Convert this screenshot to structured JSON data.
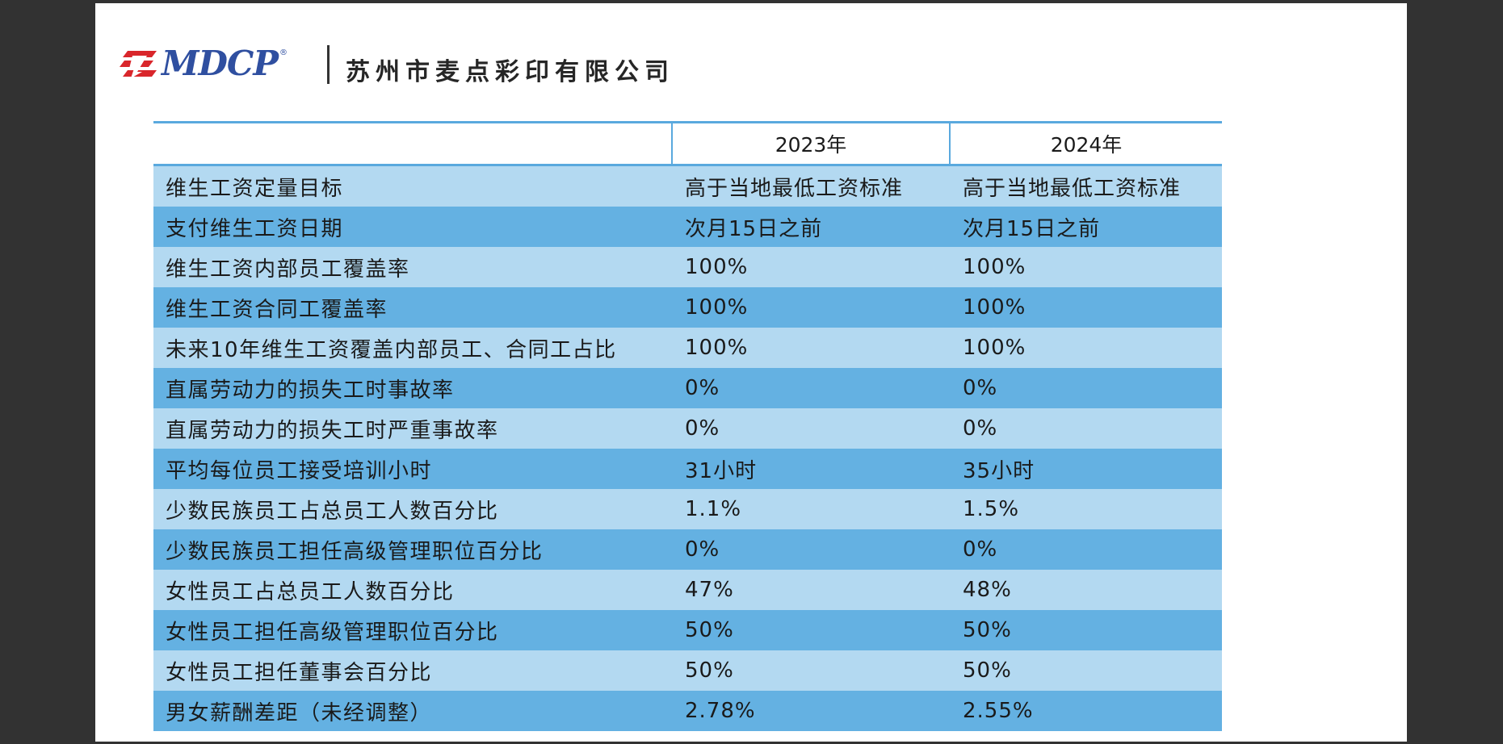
{
  "header": {
    "logo_text": "MDCP",
    "logo_reg": "®",
    "company_name": "苏州市麦点彩印有限公司"
  },
  "table": {
    "columns": [
      "",
      "2023年",
      "2024年"
    ],
    "rows": [
      {
        "label": "维生工资定量目标",
        "y2023": "高于当地最低工资标准",
        "y2024": "高于当地最低工资标准"
      },
      {
        "label": "支付维生工资日期",
        "y2023": "次月15日之前",
        "y2024": "次月15日之前"
      },
      {
        "label": "维生工资内部员工覆盖率",
        "y2023": "100%",
        "y2024": "100%"
      },
      {
        "label": "维生工资合同工覆盖率",
        "y2023": "100%",
        "y2024": "100%"
      },
      {
        "label": "未来10年维生工资覆盖内部员工、合同工占比",
        "y2023": "100%",
        "y2024": "100%"
      },
      {
        "label": "直属劳动力的损失工时事故率",
        "y2023": "0%",
        "y2024": "0%"
      },
      {
        "label": "直属劳动力的损失工时严重事故率",
        "y2023": "0%",
        "y2024": "0%"
      },
      {
        "label": "平均每位员工接受培训小时",
        "y2023": "31小时",
        "y2024": "35小时"
      },
      {
        "label": "少数民族员工占总员工人数百分比",
        "y2023": "1.1%",
        "y2024": "1.5%"
      },
      {
        "label": "少数民族员工担任高级管理职位百分比",
        "y2023": "0%",
        "y2024": "0%"
      },
      {
        "label": "女性员工占总员工人数百分比",
        "y2023": "47%",
        "y2024": "48%"
      },
      {
        "label": "女性员工担任高级管理职位百分比",
        "y2023": "50%",
        "y2024": "50%"
      },
      {
        "label": "女性员工担任董事会百分比",
        "y2023": "50%",
        "y2024": "50%"
      },
      {
        "label": "男女薪酬差距（未经调整）",
        "y2023": "2.78%",
        "y2024": "2.55%"
      }
    ]
  },
  "colors": {
    "viewer_bg": "#323232",
    "row_light": "#b3d9f1",
    "row_dark": "#64b1e2",
    "rule": "#5aa9de",
    "logo_blue": "#2f4fa0",
    "logo_red": "#d9262b"
  }
}
